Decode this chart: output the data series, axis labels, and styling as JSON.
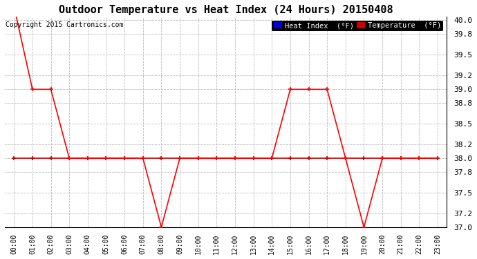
{
  "title": "Outdoor Temperature vs Heat Index (24 Hours) 20150408",
  "copyright_text": "Copyright 2015 Cartronics.com",
  "ylim": [
    37.0,
    40.05
  ],
  "yticks": [
    37.0,
    37.2,
    37.5,
    37.8,
    38.0,
    38.2,
    38.5,
    38.8,
    39.0,
    39.2,
    39.5,
    39.8,
    40.0
  ],
  "hours": [
    "00:00",
    "01:00",
    "02:00",
    "03:00",
    "04:00",
    "05:00",
    "06:00",
    "07:00",
    "08:00",
    "09:00",
    "10:00",
    "11:00",
    "12:00",
    "13:00",
    "14:00",
    "15:00",
    "16:00",
    "17:00",
    "18:00",
    "19:00",
    "20:00",
    "21:00",
    "22:00",
    "23:00"
  ],
  "temperature": [
    40.2,
    39.0,
    39.0,
    38.0,
    38.0,
    38.0,
    38.0,
    38.0,
    37.0,
    38.0,
    38.0,
    38.0,
    38.0,
    38.0,
    38.0,
    39.0,
    39.0,
    39.0,
    38.0,
    37.0,
    38.0,
    38.0,
    38.0,
    38.0
  ],
  "heat_index": [
    38.0,
    38.0,
    38.0,
    38.0,
    38.0,
    38.0,
    38.0,
    38.0,
    38.0,
    38.0,
    38.0,
    38.0,
    38.0,
    38.0,
    38.0,
    38.0,
    38.0,
    38.0,
    38.0,
    38.0,
    38.0,
    38.0,
    38.0,
    38.0
  ],
  "temp_color": "#ff0000",
  "heat_index_color": "#cc0000",
  "bg_color": "#ffffff",
  "plot_bg_color": "#ffffff",
  "grid_color": "#bbbbbb",
  "title_fontsize": 11,
  "legend_heat_index_bg": "#0000dd",
  "legend_temp_bg": "#cc0000",
  "legend_text_color": "#ffffff"
}
